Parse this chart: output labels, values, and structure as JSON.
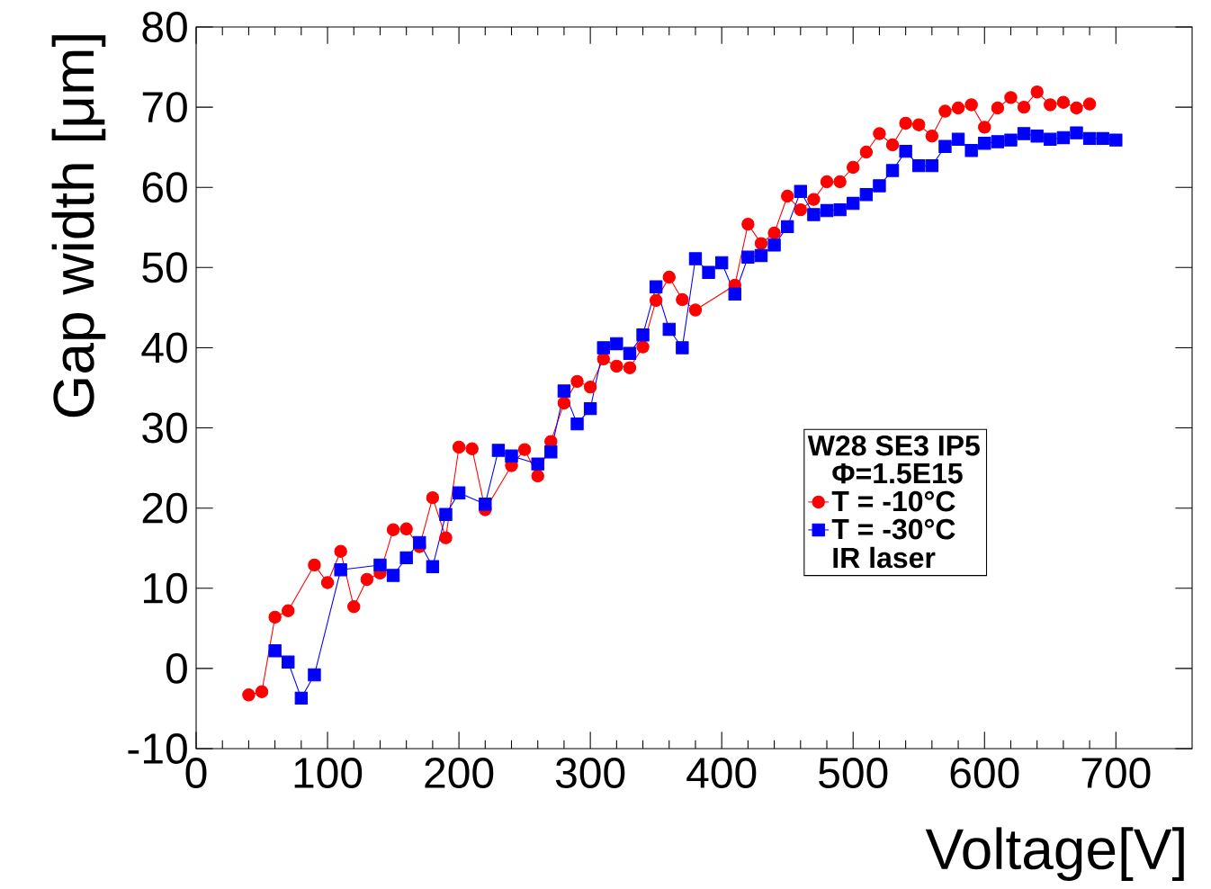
{
  "chart_data": {
    "type": "line",
    "xlabel": "Voltage[V]",
    "ylabel": "Gap width [μm]",
    "legend_title": "W28 SE3 IP5",
    "annotations": [
      "Φ=1.5E15",
      "IR laser"
    ],
    "xlim": [
      0,
      758
    ],
    "xticks": [
      0,
      100,
      200,
      300,
      400,
      500,
      600,
      700
    ],
    "ylim": [
      -10,
      80
    ],
    "yticks": [
      -10,
      0,
      10,
      20,
      30,
      40,
      50,
      60,
      70,
      80
    ],
    "grid": false,
    "legend": "bottom right",
    "line_style": "solid",
    "series": [
      {
        "name": "T = -10°C",
        "color": "#ff0000",
        "marker": "circle",
        "x": [
          40,
          50,
          60,
          70,
          90,
          100,
          110,
          120,
          130,
          140,
          150,
          160,
          170,
          180,
          190,
          200,
          210,
          220,
          230,
          240,
          250,
          260,
          270,
          280,
          290,
          300,
          310,
          320,
          330,
          340,
          350,
          360,
          370,
          380,
          390,
          400,
          410,
          420,
          430,
          440,
          450,
          460,
          470,
          480,
          490,
          500,
          510,
          520,
          530,
          540,
          550,
          560,
          570,
          580,
          590,
          600,
          610,
          620,
          630,
          640,
          650,
          660,
          670,
          680
        ],
        "values": [
          -3.3,
          -2.9,
          6.4,
          7.2,
          12.9,
          10.7,
          14.6,
          7.7,
          11.1,
          11.9,
          17.3,
          17.4,
          15.2,
          21.3,
          16.3,
          27.6,
          27.4,
          19.8,
          null,
          25.3,
          27.3,
          24.0,
          28.3,
          33.1,
          35.8,
          35.1,
          38.6,
          37.7,
          37.5,
          40.1,
          45.9,
          48.8,
          46.0,
          44.7,
          null,
          null,
          47.8,
          55.4,
          53.0,
          54.3,
          58.9,
          57.2,
          58.5,
          60.7,
          60.7,
          62.5,
          64.4,
          66.7,
          65.3,
          68.0,
          67.8,
          66.4,
          69.5,
          69.9,
          70.3,
          67.5,
          69.9,
          71.2,
          70.0,
          71.9,
          70.3,
          70.6,
          69.9,
          70.4
        ]
      },
      {
        "name": "T = -30°C",
        "color": "#0000ff",
        "marker": "square",
        "x": [
          60,
          70,
          80,
          90,
          110,
          140,
          150,
          160,
          170,
          180,
          190,
          200,
          220,
          230,
          240,
          260,
          270,
          280,
          290,
          300,
          310,
          320,
          330,
          340,
          350,
          360,
          370,
          380,
          390,
          400,
          410,
          420,
          430,
          440,
          450,
          460,
          470,
          480,
          490,
          500,
          510,
          520,
          530,
          540,
          550,
          560,
          570,
          580,
          590,
          600,
          610,
          620,
          630,
          640,
          650,
          660,
          670,
          680,
          690,
          700
        ],
        "values": [
          2.2,
          0.8,
          -3.7,
          -0.8,
          12.3,
          12.9,
          11.6,
          13.8,
          15.7,
          12.7,
          19.2,
          21.9,
          20.5,
          27.2,
          26.5,
          25.5,
          27.0,
          34.6,
          30.5,
          32.4,
          40.0,
          40.5,
          39.3,
          41.6,
          47.6,
          42.3,
          40.0,
          51.1,
          49.4,
          50.6,
          46.7,
          51.3,
          51.5,
          52.8,
          55.1,
          59.5,
          56.6,
          57.1,
          57.2,
          58.0,
          59.1,
          60.2,
          62.1,
          64.5,
          62.7,
          62.7,
          65.1,
          66.0,
          64.6,
          65.5,
          65.7,
          65.9,
          66.7,
          66.4,
          66.0,
          66.2,
          66.8,
          66.1,
          66.1,
          65.9
        ]
      }
    ]
  }
}
